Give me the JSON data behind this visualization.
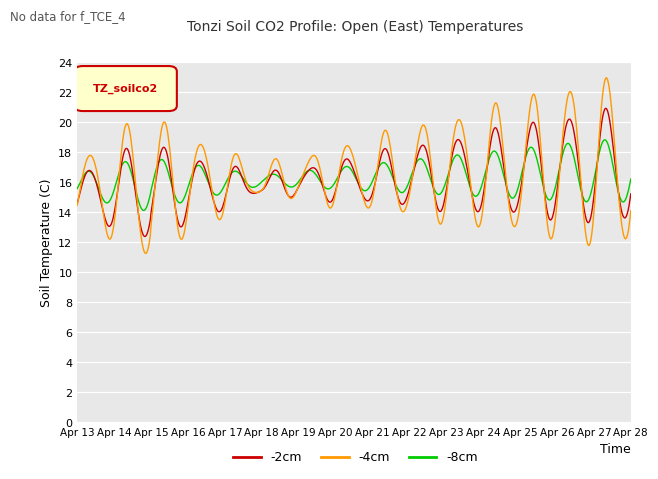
{
  "title": "Tonzi Soil CO2 Profile: Open (East) Temperatures",
  "suptitle": "No data for f_TCE_4",
  "ylabel": "Soil Temperature (C)",
  "xlabel": "Time",
  "legend_label": "TZ_soilco2",
  "series_labels": [
    "-2cm",
    "-4cm",
    "-8cm"
  ],
  "series_colors": [
    "#cc0000",
    "#ff9900",
    "#00cc00"
  ],
  "ylim": [
    0,
    24
  ],
  "yticks": [
    0,
    2,
    4,
    6,
    8,
    10,
    12,
    14,
    16,
    18,
    20,
    22,
    24
  ],
  "xtick_labels": [
    "Apr 13",
    "Apr 14",
    "Apr 15",
    "Apr 16",
    "Apr 17",
    "Apr 18",
    "Apr 19",
    "Apr 20",
    "Apr 21",
    "Apr 22",
    "Apr 23",
    "Apr 24",
    "Apr 25",
    "Apr 26",
    "Apr 27",
    "Apr 28"
  ],
  "bg_color": "#e8e8e8",
  "linewidth": 1.0
}
